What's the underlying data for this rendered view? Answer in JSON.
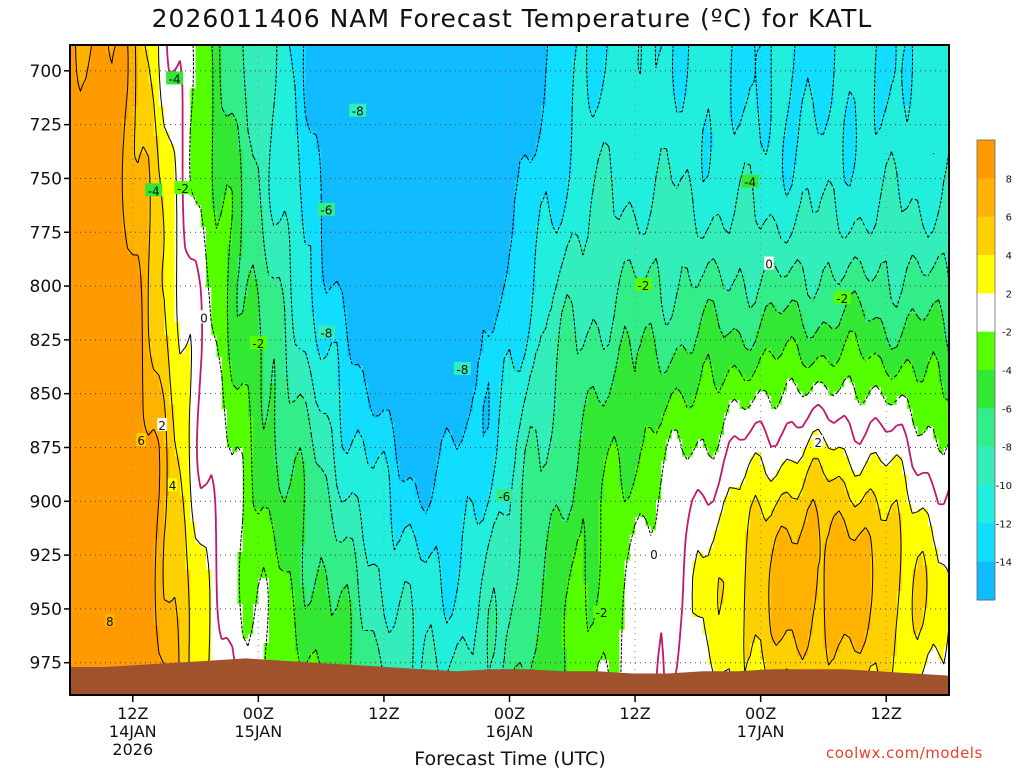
{
  "title": "2026011406 NAM Forecast Temperature (ºC) for KATL",
  "credit": "coolwx.com/models",
  "chart_data": {
    "type": "heatmap",
    "title": "2026011406 NAM Forecast Temperature (ºC) for KATL",
    "xlabel": "Forecast Time (UTC)",
    "ylabel": "",
    "ylim": [
      990,
      688
    ],
    "xlim": [
      0,
      84
    ],
    "y_ticks": [
      700,
      725,
      750,
      775,
      800,
      825,
      850,
      875,
      900,
      925,
      950,
      975
    ],
    "x_ticks": [
      {
        "h": 6,
        "lines": [
          "12Z",
          "14JAN",
          "2026"
        ]
      },
      {
        "h": 18,
        "lines": [
          "00Z",
          "15JAN"
        ]
      },
      {
        "h": 30,
        "lines": [
          "12Z"
        ]
      },
      {
        "h": 42,
        "lines": [
          "00Z",
          "16JAN"
        ]
      },
      {
        "h": 54,
        "lines": [
          "12Z"
        ]
      },
      {
        "h": 66,
        "lines": [
          "00Z",
          "17JAN"
        ]
      },
      {
        "h": 78,
        "lines": [
          "12Z"
        ]
      }
    ],
    "colorbar": {
      "labels": [
        "8",
        "6",
        "4",
        "2",
        "-2",
        "-4",
        "-6",
        "-8",
        "-10",
        "-12",
        "-14"
      ],
      "bands": [
        {
          "from": 8,
          "to": 10,
          "color": "#ff9a00"
        },
        {
          "from": 6,
          "to": 8,
          "color": "#ffb300"
        },
        {
          "from": 4,
          "to": 6,
          "color": "#ffd000"
        },
        {
          "from": 2,
          "to": 4,
          "color": "#ffff00"
        },
        {
          "from": -2,
          "to": 2,
          "color": "#ffffff"
        },
        {
          "from": -4,
          "to": -2,
          "color": "#55ff00"
        },
        {
          "from": -6,
          "to": -4,
          "color": "#33e833"
        },
        {
          "from": -8,
          "to": -6,
          "color": "#33ee88"
        },
        {
          "from": -10,
          "to": -8,
          "color": "#33eebb"
        },
        {
          "from": -12,
          "to": -10,
          "color": "#22eedd"
        },
        {
          "from": -14,
          "to": -12,
          "color": "#11ddff"
        },
        {
          "from": -16,
          "to": -14,
          "color": "#11bbff"
        }
      ]
    },
    "contour_labels": [
      {
        "text": "-4",
        "h": 10.0,
        "p": 704
      },
      {
        "text": "-8",
        "h": 27.5,
        "p": 719
      },
      {
        "text": "-4",
        "h": 8.0,
        "p": 756
      },
      {
        "text": "-2",
        "h": 10.8,
        "p": 755
      },
      {
        "text": "-6",
        "h": 24.5,
        "p": 765
      },
      {
        "text": "0",
        "h": 12.8,
        "p": 815
      },
      {
        "text": "-2",
        "h": 18.0,
        "p": 827
      },
      {
        "text": "-8",
        "h": 24.5,
        "p": 822
      },
      {
        "text": "-8",
        "h": 37.5,
        "p": 839
      },
      {
        "text": "2",
        "h": 8.8,
        "p": 865
      },
      {
        "text": "6",
        "h": 6.8,
        "p": 872
      },
      {
        "text": "4",
        "h": 9.8,
        "p": 893
      },
      {
        "text": "-6",
        "h": 41.5,
        "p": 898
      },
      {
        "text": "0",
        "h": 55.8,
        "p": 925
      },
      {
        "text": "-2",
        "h": 50.8,
        "p": 952
      },
      {
        "text": "8",
        "h": 3.8,
        "p": 956
      },
      {
        "text": "-2",
        "h": 54.8,
        "p": 800
      },
      {
        "text": "-2",
        "h": 73.8,
        "p": 806
      },
      {
        "text": "-4",
        "h": 65.0,
        "p": 752
      },
      {
        "text": "0",
        "h": 66.8,
        "p": 790
      },
      {
        "text": "2",
        "h": 71.5,
        "p": 873
      }
    ],
    "ground_color": "#a0522d"
  }
}
